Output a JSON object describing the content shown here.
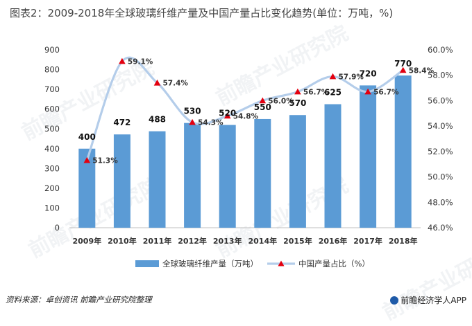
{
  "title": "图表2：2009-2018年全球玻璃纤维产量及中国产量占比变化趋势(单位：万吨，%)",
  "source": "资料来源：卓创资讯 前瞻产业研究院整理",
  "brand": "前瞻经济学人APP",
  "watermark": "前瞻产业研究院",
  "chart_data": {
    "type": "bar",
    "categories": [
      "2009年",
      "2010年",
      "2011年",
      "2012年",
      "2013年",
      "2014年",
      "2015年",
      "2016年",
      "2017年",
      "2018年"
    ],
    "series": [
      {
        "name": "全球玻璃纤维产量（万吨）",
        "type": "bar",
        "axis": "left",
        "values": [
          400,
          472,
          488,
          530,
          520,
          550,
          570,
          625,
          720,
          770
        ],
        "labels": [
          "400",
          "472",
          "488",
          "530",
          "520",
          "550",
          "570",
          "625",
          "720",
          "770"
        ],
        "color": "#5b9bd5"
      },
      {
        "name": "中国产量占比（%）",
        "type": "line",
        "axis": "right",
        "values": [
          51.3,
          59.1,
          57.4,
          54.3,
          54.8,
          56.0,
          56.7,
          57.9,
          56.7,
          58.4
        ],
        "labels": [
          "51.3%",
          "59.1%",
          "57.4%",
          "54.3%",
          "54.8%",
          "56.0%",
          "56.7%",
          "57.9%",
          "56.7%",
          "58.4%"
        ],
        "color": "#b4cdea",
        "marker_color": "#e3000f"
      }
    ],
    "yleft": {
      "min": 0,
      "max": 900,
      "step": 100,
      "ticks": [
        "0",
        "100",
        "200",
        "300",
        "400",
        "500",
        "600",
        "700",
        "800",
        "900"
      ]
    },
    "yright": {
      "min": 46,
      "max": 60,
      "step": 2,
      "ticks": [
        "46.0%",
        "48.0%",
        "50.0%",
        "52.0%",
        "54.0%",
        "56.0%",
        "58.0%",
        "60.0%"
      ]
    },
    "grid": false,
    "legend_position": "bottom"
  }
}
